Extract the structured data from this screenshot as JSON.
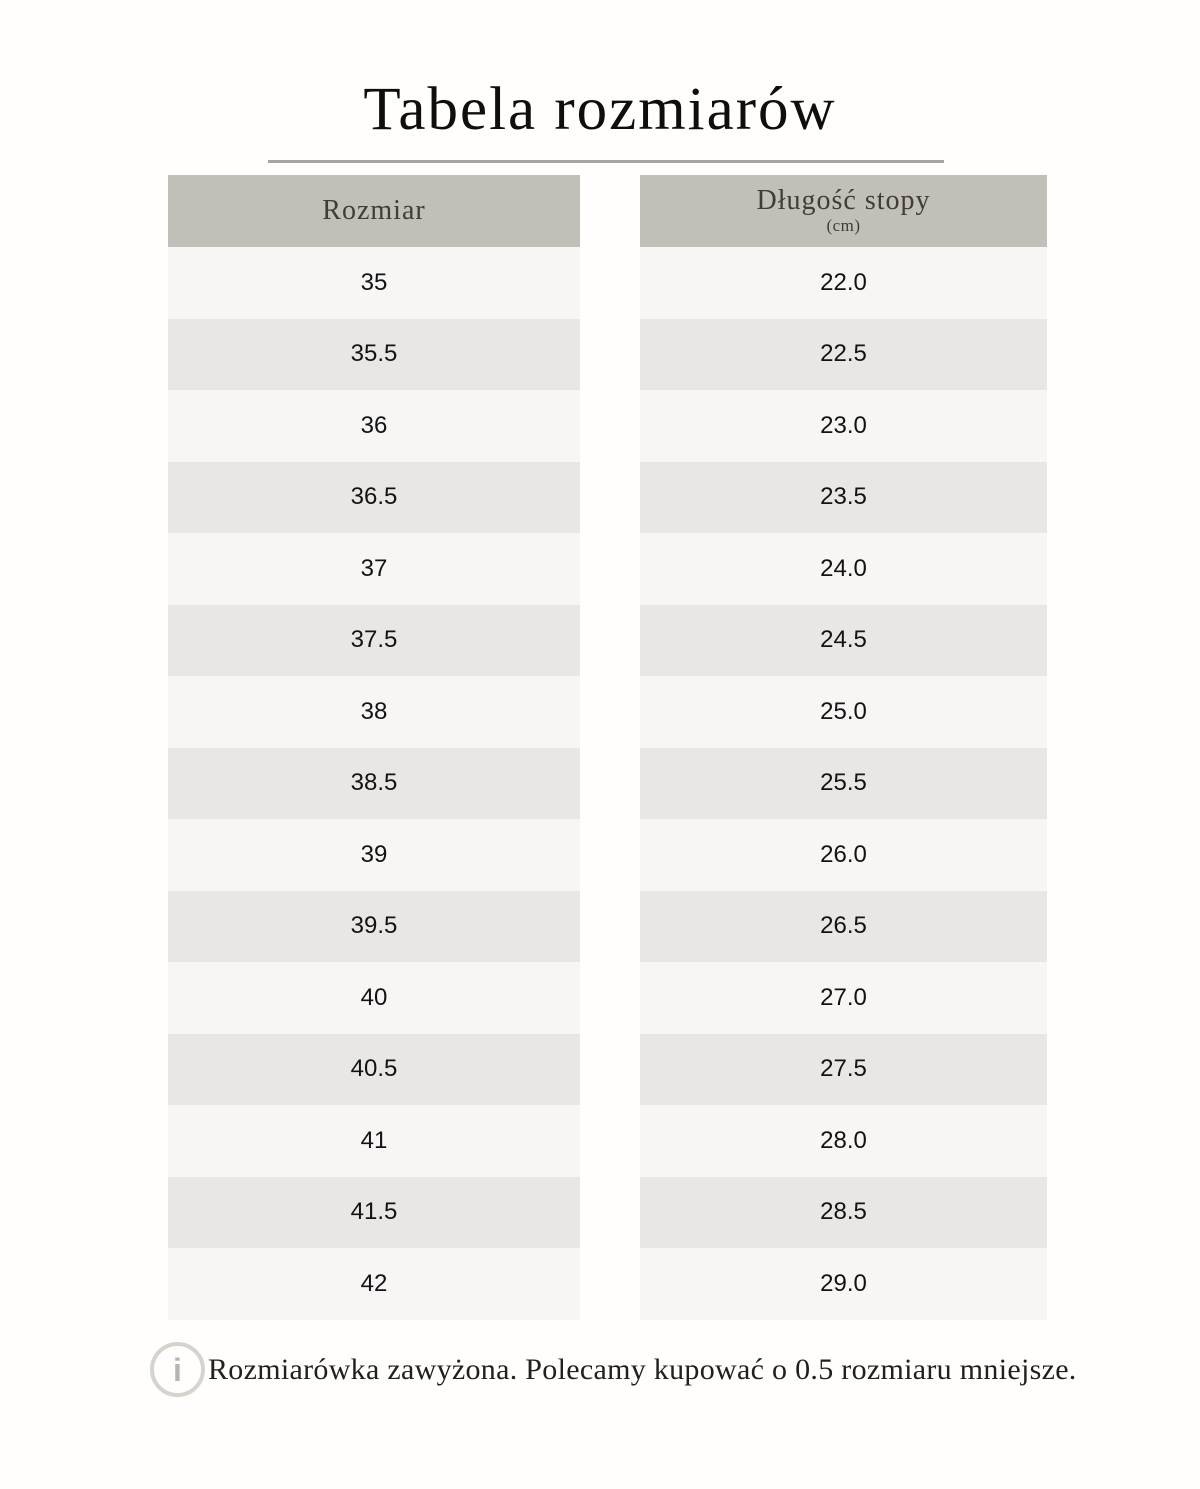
{
  "page": {
    "title": "Tabela rozmiarów"
  },
  "chart_data": {
    "type": "table",
    "title": "Tabela rozmiarów",
    "columns": [
      "Rozmiar",
      "Długość stopy (cm)"
    ],
    "rows": [
      [
        "35",
        "22.0"
      ],
      [
        "35.5",
        "22.5"
      ],
      [
        "36",
        "23.0"
      ],
      [
        "36.5",
        "23.5"
      ],
      [
        "37",
        "24.0"
      ],
      [
        "37.5",
        "24.5"
      ],
      [
        "38",
        "25.0"
      ],
      [
        "38.5",
        "25.5"
      ],
      [
        "39",
        "26.0"
      ],
      [
        "39.5",
        "26.5"
      ],
      [
        "40",
        "27.0"
      ],
      [
        "40.5",
        "27.5"
      ],
      [
        "41",
        "28.0"
      ],
      [
        "41.5",
        "28.5"
      ],
      [
        "42",
        "29.0"
      ]
    ]
  },
  "table": {
    "col1_header": "Rozmiar",
    "col2_header": "Długość stopy",
    "col2_subheader": "(cm)"
  },
  "note": {
    "icon": "info-icon",
    "icon_glyph": "i",
    "text": "Rozmiarówka zawyżona. Polecamy kupować o 0.5 rozmiaru mniejsze."
  },
  "colors": {
    "page_bg": "#fffefd",
    "header_bg": "#c2beb8",
    "header_text": "#403c37",
    "row_light": "#f7f6f5",
    "row_dark": "#e8e7e5",
    "title_rule": "#a8a49e",
    "icon_outline": "#d7d3cc"
  }
}
